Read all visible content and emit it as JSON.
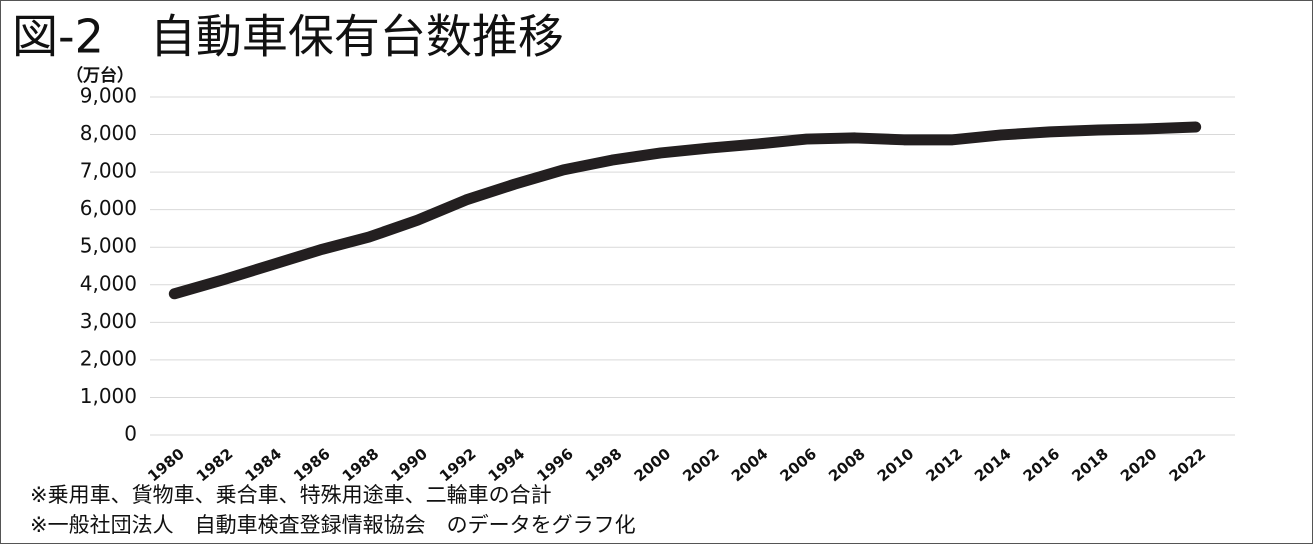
{
  "chart_data": {
    "type": "line",
    "title": "図-2　自動車保有台数推移",
    "y_axis_label": "（万台）",
    "notes": [
      "※乗用車、貨物車、乗合車、特殊用途車、二輪車の合計",
      "※一般社団法人　自動車検査登録情報協会　のデータをグラフ化"
    ],
    "categories": [
      "1980",
      "1982",
      "1984",
      "1986",
      "1988",
      "1990",
      "1992",
      "1994",
      "1996",
      "1998",
      "2000",
      "2002",
      "2004",
      "2006",
      "2008",
      "2010",
      "2012",
      "2014",
      "2016",
      "2018",
      "2020",
      "2022"
    ],
    "series": [
      {
        "name": "自動車保有台数",
        "color": "#231f20",
        "values": [
          3760,
          4130,
          4530,
          4930,
          5270,
          5720,
          6260,
          6680,
          7060,
          7320,
          7510,
          7640,
          7750,
          7880,
          7910,
          7860,
          7860,
          7990,
          8070,
          8120,
          8150,
          8200
        ]
      }
    ],
    "ylim": [
      0,
      9000
    ],
    "yticks": [
      0,
      {
        "value": 1000,
        "label": "1,000"
      },
      {
        "value": 2000,
        "label": "2,000"
      },
      {
        "value": 3000,
        "label": "3,000"
      },
      {
        "value": 4000,
        "label": "4,000"
      },
      {
        "value": 5000,
        "label": "5,000"
      },
      {
        "value": 6000,
        "label": "6,000"
      },
      {
        "value": 7000,
        "label": "7,000"
      },
      {
        "value": 8000,
        "label": "8,000"
      },
      {
        "value": 9000,
        "label": "9,000"
      }
    ],
    "grid": true
  }
}
